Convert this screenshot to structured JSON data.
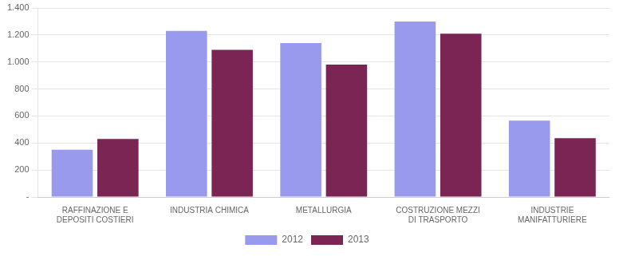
{
  "chart_data": {
    "type": "bar",
    "categories": [
      "RAFFINAZIONE E\nDEPOSITI COSTIERI",
      "INDUSTRIA CHIMICA",
      "METALLURGIA",
      "COSTRUZIONE MEZZI\nDI TRASPORTO",
      "INDUSTRIE\nMANIFATTURIERE"
    ],
    "series": [
      {
        "name": "2012",
        "color": "#9999EE",
        "values": [
          350,
          1230,
          1140,
          1300,
          565
        ]
      },
      {
        "name": "2013",
        "color": "#7B2555",
        "values": [
          430,
          1090,
          980,
          1210,
          435
        ]
      }
    ],
    "ylim": [
      0,
      1400
    ],
    "yticks": [
      {
        "value": 0,
        "label": "-"
      },
      200,
      400,
      600,
      800,
      {
        "value": 1000,
        "label": "1.000"
      },
      {
        "value": 1200,
        "label": "1.200"
      },
      {
        "value": 1400,
        "label": "1.400"
      }
    ],
    "grid": true,
    "legend": "bottom"
  }
}
